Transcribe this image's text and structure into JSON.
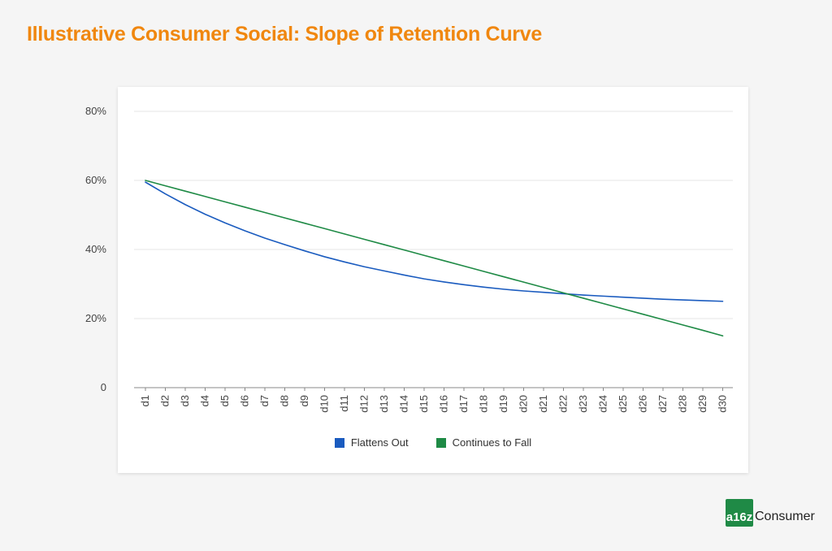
{
  "title": "Illustrative Consumer Social: Slope of Retention Curve",
  "brand": {
    "mark": "a16z",
    "name": "Consumer"
  },
  "colors": {
    "title": "#f0870f",
    "flattens": "#1a5bbf",
    "falls": "#1e8a45",
    "brand": "#1f8a46"
  },
  "chart_data": {
    "type": "line",
    "title": "",
    "xlabel": "",
    "ylabel": "",
    "ylim": [
      0,
      80
    ],
    "yticks": [
      0,
      20,
      40,
      60,
      80
    ],
    "ytick_labels": [
      "0",
      "20%",
      "40%",
      "60%",
      "80%"
    ],
    "grid": true,
    "legend_position": "bottom",
    "x": [
      "d1",
      "d2",
      "d3",
      "d4",
      "d5",
      "d6",
      "d7",
      "d8",
      "d9",
      "d10",
      "d11",
      "d12",
      "d13",
      "d14",
      "d15",
      "d16",
      "d17",
      "d18",
      "d19",
      "d20",
      "d21",
      "d22",
      "d23",
      "d24",
      "d25",
      "d26",
      "d27",
      "d28",
      "d29",
      "d30"
    ],
    "series": [
      {
        "name": "Flattens Out",
        "color": "#1a5bbf",
        "values": [
          59.5,
          56.1,
          53.0,
          50.2,
          47.7,
          45.4,
          43.3,
          41.4,
          39.6,
          37.9,
          36.4,
          35.0,
          33.8,
          32.6,
          31.5,
          30.6,
          29.8,
          29.1,
          28.5,
          28.0,
          27.6,
          27.2,
          26.8,
          26.5,
          26.2,
          25.9,
          25.6,
          25.4,
          25.2,
          25.0
        ]
      },
      {
        "name": "Continues to Fall",
        "color": "#1e8a45",
        "values": [
          60.0,
          58.45,
          56.9,
          55.35,
          53.8,
          52.25,
          50.7,
          49.15,
          47.6,
          46.05,
          44.5,
          42.95,
          41.4,
          39.85,
          38.3,
          36.75,
          35.2,
          33.65,
          32.1,
          30.55,
          29.0,
          27.45,
          25.9,
          24.35,
          22.8,
          21.25,
          19.7,
          18.15,
          16.6,
          15.0
        ]
      }
    ]
  }
}
